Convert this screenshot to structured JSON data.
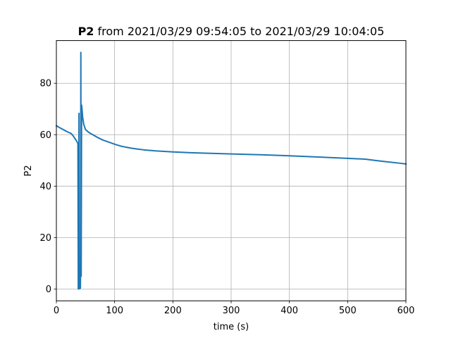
{
  "chart_data": {
    "type": "line",
    "title_bold": "P2",
    "title_rest": " from 2021/03/29 09:54:05 to 2021/03/29 10:04:05",
    "xlabel": "time (s)",
    "ylabel": "P2",
    "xlim": [
      0,
      600
    ],
    "ylim": [
      -4.6,
      96.6
    ],
    "xticks": [
      0,
      100,
      200,
      300,
      400,
      500,
      600
    ],
    "yticks": [
      0,
      20,
      40,
      60,
      80
    ],
    "grid": true,
    "line_color": "#1f77b4",
    "series": [
      {
        "points": [
          [
            0,
            63.5
          ],
          [
            5,
            62.8
          ],
          [
            10,
            62.2
          ],
          [
            15,
            61.6
          ],
          [
            20,
            61.0
          ],
          [
            25,
            60.5
          ],
          [
            28,
            59.8
          ],
          [
            31,
            58.8
          ],
          [
            34,
            57.8
          ],
          [
            36,
            57.0
          ],
          [
            37,
            56.5
          ],
          [
            37.6,
            0.0
          ],
          [
            38.2,
            0.3
          ],
          [
            38.8,
            68.3
          ],
          [
            39.3,
            0.2
          ],
          [
            40.0,
            0.1
          ],
          [
            40.6,
            8.0
          ],
          [
            41.2,
            0.3
          ],
          [
            41.7,
            10.0
          ],
          [
            42.0,
            92.0
          ],
          [
            42.6,
            5.0
          ],
          [
            43.3,
            71.5
          ],
          [
            44.0,
            70.0
          ],
          [
            45,
            67.0
          ],
          [
            47,
            64.0
          ],
          [
            50,
            62.0
          ],
          [
            55,
            61.0
          ],
          [
            60,
            60.3
          ],
          [
            70,
            59.0
          ],
          [
            80,
            57.9
          ],
          [
            90,
            57.1
          ],
          [
            100,
            56.3
          ],
          [
            110,
            55.6
          ],
          [
            120,
            55.1
          ],
          [
            130,
            54.7
          ],
          [
            140,
            54.4
          ],
          [
            150,
            54.1
          ],
          [
            170,
            53.7
          ],
          [
            200,
            53.3
          ],
          [
            230,
            53.0
          ],
          [
            260,
            52.8
          ],
          [
            300,
            52.5
          ],
          [
            350,
            52.2
          ],
          [
            400,
            51.8
          ],
          [
            450,
            51.3
          ],
          [
            500,
            50.8
          ],
          [
            530,
            50.5
          ],
          [
            550,
            49.9
          ],
          [
            570,
            49.4
          ],
          [
            590,
            48.9
          ],
          [
            600,
            48.6
          ]
        ]
      }
    ]
  }
}
